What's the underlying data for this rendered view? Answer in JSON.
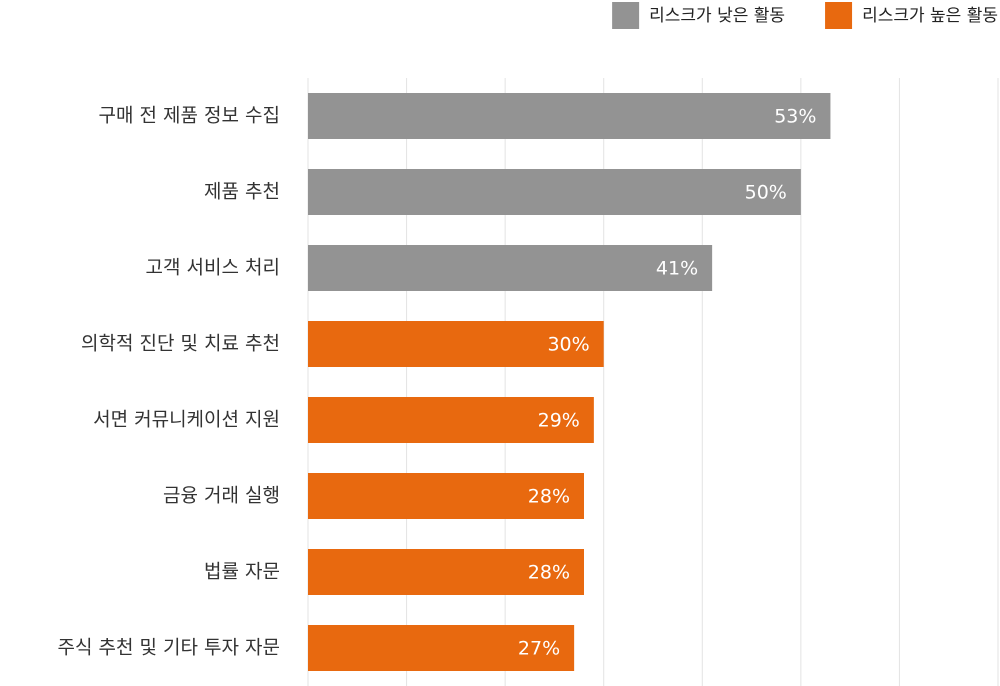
{
  "chart_data": {
    "type": "hbar",
    "categories": [
      "구매 전 제품 정보 수집",
      "제품 추천",
      "고객 서비스 처리",
      "의학적 진단 및 치료 추천",
      "서면 커뮤니케이션 지원",
      "금융 거래 실행",
      "법률 자문",
      "주식 추천 및 기타 투자 자문"
    ],
    "series": [
      {
        "name": "리스크가 낮은 활동",
        "color": "#939393",
        "values": [
          53,
          50,
          41,
          null,
          null,
          null,
          null,
          null
        ],
        "value_labels": [
          "53%",
          "50%",
          "41%",
          null,
          null,
          null,
          null,
          null
        ]
      },
      {
        "name": "리스크가 높은 활동",
        "color": "#e8690f",
        "values": [
          null,
          null,
          null,
          30,
          29,
          28,
          28,
          27
        ],
        "value_labels": [
          null,
          null,
          null,
          "30%",
          "29%",
          "28%",
          "28%",
          "27%"
        ]
      }
    ],
    "xlim": [
      0,
      70
    ],
    "xticks": [
      0,
      10,
      20,
      30,
      40,
      50,
      60,
      70
    ],
    "grid": true,
    "legend": "top-right"
  }
}
